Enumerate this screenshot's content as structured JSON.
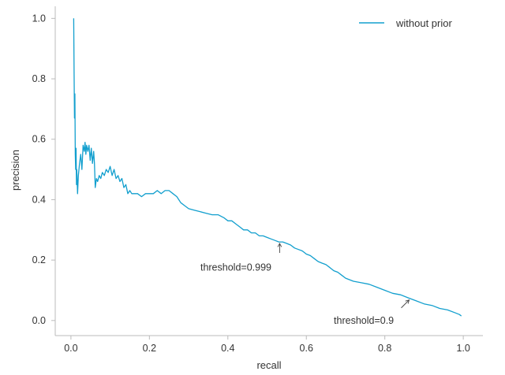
{
  "chart_data": {
    "type": "line",
    "xlabel": "recall",
    "ylabel": "precision",
    "xlim": [
      -0.04,
      1.05
    ],
    "ylim": [
      -0.05,
      1.04
    ],
    "xticks": [
      0.0,
      0.2,
      0.4,
      0.6,
      0.8,
      1.0
    ],
    "xtick_labels": [
      "0.0",
      "0.2",
      "0.4",
      "0.6",
      "0.8",
      "1.0"
    ],
    "yticks": [
      0.0,
      0.2,
      0.4,
      0.6,
      0.8,
      1.0
    ],
    "ytick_labels": [
      "0.0",
      "0.2",
      "0.4",
      "0.6",
      "0.8",
      "1.0"
    ],
    "grid": false,
    "legend_position": "top-right",
    "series": [
      {
        "name": "without prior",
        "color": "#129fce",
        "x": [
          0.007,
          0.008,
          0.009,
          0.01,
          0.011,
          0.012,
          0.013,
          0.014,
          0.015,
          0.017,
          0.019,
          0.022,
          0.025,
          0.028,
          0.031,
          0.034,
          0.036,
          0.038,
          0.04,
          0.043,
          0.046,
          0.049,
          0.052,
          0.055,
          0.058,
          0.06,
          0.062,
          0.065,
          0.068,
          0.072,
          0.076,
          0.08,
          0.085,
          0.09,
          0.095,
          0.1,
          0.105,
          0.11,
          0.115,
          0.12,
          0.125,
          0.13,
          0.135,
          0.14,
          0.145,
          0.15,
          0.155,
          0.16,
          0.17,
          0.18,
          0.19,
          0.2,
          0.21,
          0.22,
          0.23,
          0.24,
          0.25,
          0.26,
          0.27,
          0.28,
          0.29,
          0.3,
          0.315,
          0.33,
          0.345,
          0.36,
          0.375,
          0.39,
          0.4,
          0.41,
          0.42,
          0.43,
          0.44,
          0.45,
          0.46,
          0.47,
          0.48,
          0.49,
          0.5,
          0.51,
          0.52,
          0.53,
          0.54,
          0.55,
          0.56,
          0.57,
          0.58,
          0.59,
          0.6,
          0.61,
          0.62,
          0.63,
          0.64,
          0.65,
          0.66,
          0.67,
          0.68,
          0.69,
          0.7,
          0.72,
          0.74,
          0.76,
          0.78,
          0.8,
          0.82,
          0.84,
          0.86,
          0.88,
          0.9,
          0.92,
          0.94,
          0.96,
          0.98,
          0.99,
          0.995
        ],
        "y": [
          1.0,
          0.82,
          0.67,
          0.75,
          0.55,
          0.5,
          0.57,
          0.45,
          0.5,
          0.42,
          0.48,
          0.52,
          0.55,
          0.5,
          0.58,
          0.56,
          0.59,
          0.55,
          0.58,
          0.56,
          0.58,
          0.53,
          0.57,
          0.52,
          0.56,
          0.52,
          0.44,
          0.47,
          0.46,
          0.48,
          0.47,
          0.49,
          0.48,
          0.5,
          0.49,
          0.51,
          0.48,
          0.5,
          0.47,
          0.48,
          0.46,
          0.47,
          0.44,
          0.45,
          0.42,
          0.43,
          0.42,
          0.42,
          0.42,
          0.41,
          0.42,
          0.42,
          0.42,
          0.43,
          0.42,
          0.43,
          0.43,
          0.42,
          0.41,
          0.39,
          0.38,
          0.37,
          0.365,
          0.36,
          0.355,
          0.35,
          0.35,
          0.34,
          0.33,
          0.33,
          0.32,
          0.31,
          0.3,
          0.3,
          0.29,
          0.29,
          0.28,
          0.28,
          0.275,
          0.27,
          0.265,
          0.26,
          0.26,
          0.255,
          0.25,
          0.24,
          0.235,
          0.23,
          0.22,
          0.215,
          0.205,
          0.195,
          0.19,
          0.185,
          0.175,
          0.165,
          0.16,
          0.15,
          0.14,
          0.13,
          0.125,
          0.12,
          0.11,
          0.1,
          0.09,
          0.085,
          0.075,
          0.065,
          0.055,
          0.05,
          0.04,
          0.035,
          0.025,
          0.02,
          0.015
        ]
      }
    ],
    "annotations": [
      {
        "text": "threshold=0.999",
        "x": 0.532,
        "y": 0.255,
        "text_x": 0.33,
        "text_y": 0.175
      },
      {
        "text": "threshold=0.9",
        "x": 0.862,
        "y": 0.068,
        "text_x": 0.67,
        "text_y": 0.0
      }
    ]
  }
}
